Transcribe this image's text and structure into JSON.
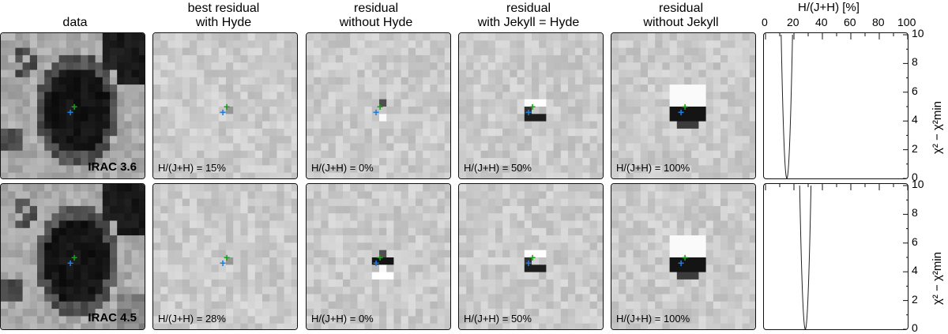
{
  "columns": [
    {
      "title_line1": "data",
      "title_line2": ""
    },
    {
      "title_line1": "best residual",
      "title_line2": "with Hyde"
    },
    {
      "title_line1": "residual",
      "title_line2": "without Hyde"
    },
    {
      "title_line1": "residual",
      "title_line2": "with Jekyll = Hyde"
    },
    {
      "title_line1": "residual",
      "title_line2": "without Jekyll"
    }
  ],
  "rows": [
    {
      "band": "IRAC 3.6",
      "labels": [
        "H/(J+H) = 15%",
        "H/(J+H) = 0%",
        "H/(J+H) = 50%",
        "H/(J+H) = 100%"
      ],
      "chi_min_percent": 15
    },
    {
      "band": "IRAC 4.5",
      "labels": [
        "H/(J+H) = 28%",
        "H/(J+H) = 0%",
        "H/(J+H) = 50%",
        "H/(J+H) = 100%"
      ],
      "chi_min_percent": 28
    }
  ],
  "markers": {
    "green": "+",
    "blue": "+"
  },
  "chi_plot": {
    "x_title": "H/(J+H) [%]",
    "x_ticks": [
      "0",
      "20",
      "40",
      "60",
      "80",
      "100"
    ],
    "y_ticks": [
      "10",
      "8",
      "6",
      "4",
      "2",
      "0"
    ],
    "y_title": "χ² − χ²min",
    "xlim": [
      0,
      100
    ],
    "ylim": [
      0,
      10
    ]
  },
  "colors": {
    "green_marker": "#18a018",
    "blue_marker": "#1a7fe0"
  }
}
